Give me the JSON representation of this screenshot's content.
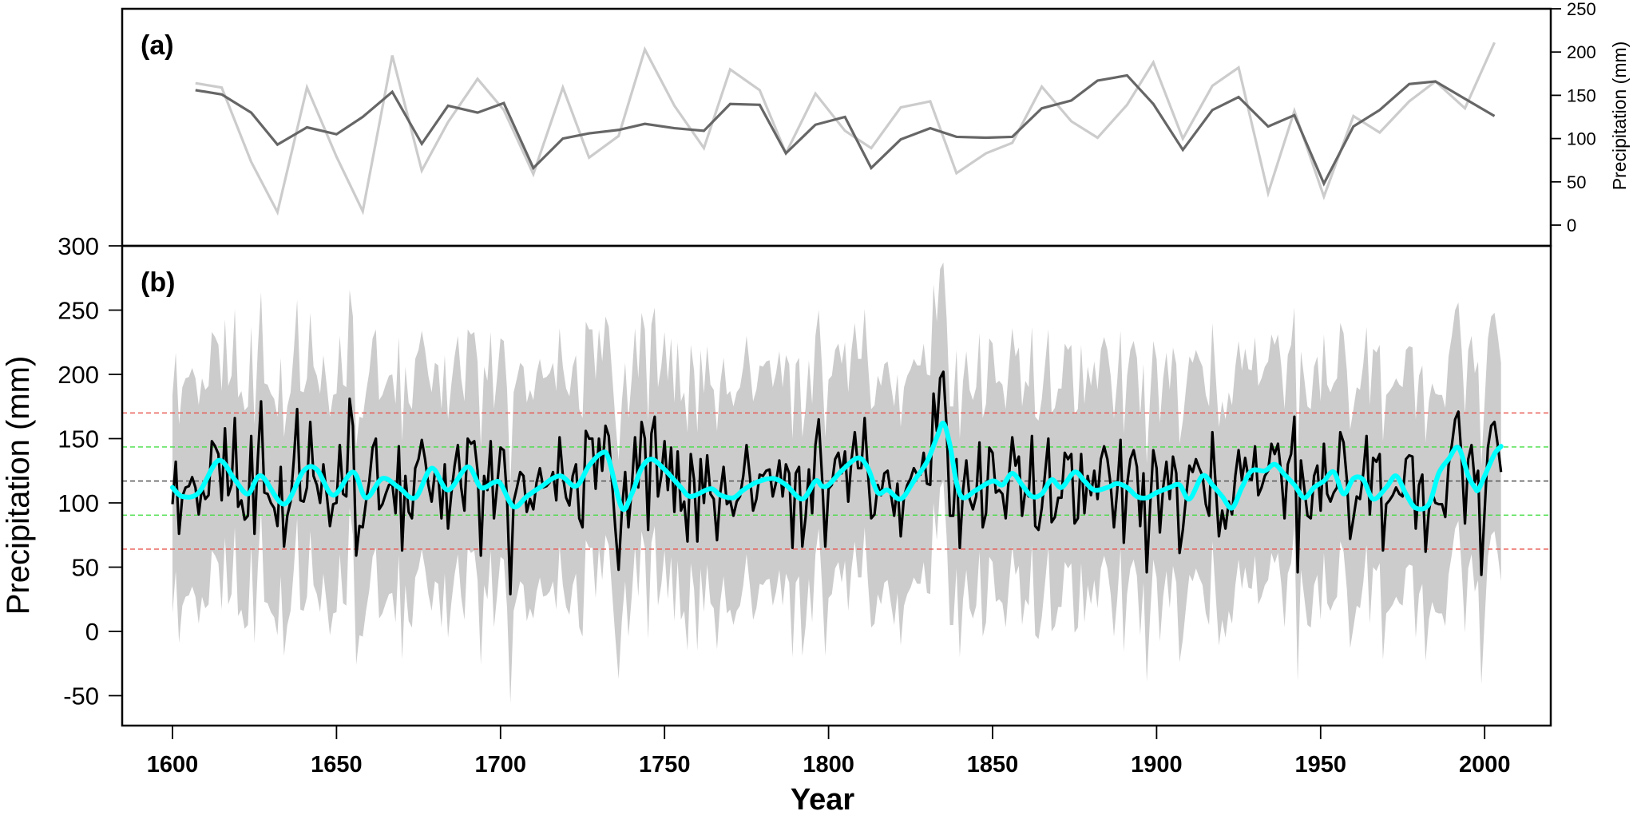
{
  "chart_data": [
    {
      "panel_label": "(a)",
      "type": "line",
      "y_axis_label": "Precipitation (mm)",
      "y_axis_side": "right",
      "ylim": [
        -24,
        250
      ],
      "y_ticks": [
        "0",
        "50",
        "100",
        "150",
        "200",
        "250"
      ],
      "xlim": [
        1585,
        2020
      ],
      "grid": false,
      "x": [
        1607,
        1615,
        1624,
        1632,
        1641,
        1650,
        1658,
        1667,
        1676,
        1684,
        1693,
        1701,
        1710,
        1719,
        1727,
        1736,
        1744,
        1753,
        1762,
        1770,
        1779,
        1787,
        1796,
        1805,
        1813,
        1822,
        1831,
        1839,
        1848,
        1856,
        1865,
        1874,
        1882,
        1891,
        1899,
        1908,
        1917,
        1925,
        1934,
        1942,
        1951,
        1960,
        1968,
        1977,
        1985,
        1994,
        2003
      ],
      "series": [
        {
          "color": "#666666",
          "values": [
            156,
            151,
            130,
            93,
            113,
            105,
            125,
            154,
            94,
            138,
            130,
            141,
            66,
            100,
            106,
            110,
            117,
            112,
            109,
            140,
            139,
            83,
            116,
            125,
            66,
            99,
            112,
            102,
            101,
            102,
            135,
            144,
            167,
            173,
            140,
            87,
            133,
            148,
            114,
            127,
            48,
            114,
            133,
            163,
            166,
            146,
            126
          ]
        },
        {
          "color": "#cccccc",
          "values": [
            164,
            159,
            73,
            15,
            159,
            79,
            16,
            196,
            63,
            119,
            169,
            133,
            59,
            159,
            78,
            103,
            203,
            138,
            89,
            180,
            156,
            83,
            152,
            109,
            89,
            136,
            143,
            60,
            83,
            95,
            160,
            120,
            101,
            139,
            188,
            100,
            161,
            182,
            37,
            132,
            33,
            126,
            107,
            143,
            166,
            135,
            211
          ]
        }
      ]
    },
    {
      "panel_label": "(b)",
      "type": "line",
      "y_axis_label": "Precipitation (mm)",
      "y_axis_side": "left",
      "x_axis_label": "Year",
      "xlim": [
        1585,
        2020
      ],
      "x_ticks": [
        "1600",
        "1650",
        "1700",
        "1750",
        "1800",
        "1850",
        "1900",
        "1950",
        "2000"
      ],
      "ylim": [
        -73,
        300
      ],
      "y_ticks": [
        "-50",
        "0",
        "50",
        "100",
        "150",
        "200",
        "250",
        "300"
      ],
      "grid": false,
      "x_range": [
        1600,
        2005
      ],
      "series": [
        {
          "color": "#000000",
          "style": "annual",
          "values": [
            99,
            132,
            76,
            105,
            112,
            113,
            120,
            112,
            91,
            112,
            103,
            106,
            148,
            144,
            138,
            102,
            158,
            106,
            114,
            166,
            97,
            102,
            87,
            90,
            152,
            76,
            134,
            179,
            108,
            107,
            100,
            96,
            82,
            128,
            66,
            90,
            101,
            134,
            173,
            102,
            101,
            112,
            163,
            121,
            114,
            100,
            130,
            107,
            82,
            99,
            100,
            145,
            107,
            105,
            181,
            160,
            59,
            82,
            81,
            101,
            117,
            143,
            150,
            95,
            99,
            107,
            114,
            115,
            92,
            144,
            63,
            121,
            93,
            88,
            127,
            134,
            149,
            134,
            114,
            101,
            124,
            122,
            88,
            130,
            80,
            107,
            129,
            145,
            112,
            94,
            150,
            146,
            148,
            125,
            59,
            121,
            110,
            148,
            88,
            114,
            143,
            141,
            103,
            29,
            101,
            112,
            124,
            121,
            93,
            103,
            95,
            116,
            127,
            112,
            113,
            116,
            124,
            102,
            151,
            121,
            104,
            98,
            121,
            130,
            88,
            81,
            156,
            150,
            150,
            111,
            150,
            125,
            160,
            152,
            116,
            80,
            48,
            94,
            124,
            81,
            112,
            151,
            112,
            163,
            150,
            79,
            154,
            167,
            105,
            121,
            148,
            110,
            143,
            93,
            140,
            94,
            101,
            70,
            138,
            118,
            70,
            134,
            100,
            137,
            107,
            103,
            71,
            108,
            128,
            99,
            102,
            90,
            101,
            105,
            121,
            145,
            121,
            94,
            103,
            122,
            121,
            125,
            126,
            105,
            116,
            133,
            105,
            130,
            123,
            65,
            123,
            128,
            66,
            89,
            126,
            92,
            145,
            165,
            121,
            66,
            111,
            114,
            134,
            139,
            123,
            140,
            101,
            134,
            155,
            127,
            127,
            166,
            124,
            88,
            91,
            114,
            106,
            123,
            125,
            107,
            90,
            115,
            74,
            105,
            114,
            119,
            127,
            122,
            122,
            139,
            115,
            114,
            185,
            156,
            197,
            202,
            158,
            90,
            90,
            134,
            65,
            110,
            133,
            103,
            95,
            105,
            147,
            81,
            92,
            143,
            139,
            108,
            110,
            107,
            88,
            121,
            151,
            129,
            136,
            90,
            110,
            105,
            152,
            82,
            79,
            96,
            123,
            150,
            85,
            89,
            104,
            104,
            139,
            134,
            138,
            84,
            88,
            138,
            92,
            121,
            106,
            125,
            103,
            134,
            144,
            134,
            114,
            81,
            110,
            149,
            69,
            114,
            134,
            141,
            128,
            82,
            123,
            46,
            96,
            141,
            127,
            77,
            112,
            132,
            103,
            136,
            123,
            61,
            79,
            105,
            129,
            124,
            134,
            127,
            121,
            99,
            90,
            155,
            114,
            74,
            94,
            80,
            101,
            91,
            121,
            141,
            118,
            135,
            119,
            118,
            144,
            106,
            112,
            121,
            125,
            146,
            138,
            146,
            122,
            88,
            130,
            138,
            167,
            46,
            133,
            112,
            90,
            88,
            121,
            129,
            94,
            146,
            107,
            101,
            108,
            112,
            155,
            147,
            118,
            72,
            88,
            105,
            103,
            123,
            152,
            91,
            135,
            132,
            138,
            63,
            99,
            102,
            106,
            112,
            107,
            105,
            134,
            137,
            136,
            80,
            114,
            122,
            62,
            94,
            108,
            100,
            99,
            99,
            89,
            129,
            145,
            165,
            171,
            134,
            84,
            134,
            145,
            116,
            125,
            44,
            94,
            143,
            160,
            163,
            145,
            124
          ]
        },
        {
          "color": "#00ffff",
          "style": "smoothed",
          "x": [
            1600,
            1603,
            1608,
            1614,
            1619,
            1623,
            1627,
            1634,
            1640,
            1644,
            1649,
            1655,
            1659,
            1664,
            1669,
            1674,
            1679,
            1684,
            1690,
            1694,
            1698,
            1700,
            1704,
            1708,
            1712,
            1718,
            1723,
            1727,
            1731,
            1733,
            1737,
            1740,
            1743,
            1746,
            1750,
            1755,
            1758,
            1764,
            1767,
            1771,
            1774,
            1778,
            1783,
            1787,
            1792,
            1796,
            1798,
            1800,
            1804,
            1809,
            1812,
            1815,
            1818,
            1822,
            1826,
            1830,
            1833,
            1835,
            1837,
            1839,
            1841,
            1845,
            1850,
            1853,
            1856,
            1859,
            1862,
            1865,
            1868,
            1871,
            1875,
            1878,
            1881,
            1885,
            1888,
            1891,
            1894,
            1897,
            1900,
            1904,
            1907,
            1910,
            1914,
            1917,
            1920,
            1923,
            1926,
            1929,
            1933,
            1936,
            1939,
            1942,
            1945,
            1948,
            1951,
            1954,
            1957,
            1960,
            1963,
            1966,
            1970,
            1973,
            1976,
            1979,
            1983,
            1986,
            1989,
            1992,
            1995,
            1997,
            1998,
            2000,
            2003,
            2005
          ],
          "values": [
            112,
            105,
            108,
            133,
            118,
            107,
            121,
            99,
            125,
            126,
            106,
            124,
            104,
            119,
            112,
            104,
            127,
            110,
            128,
            112,
            116,
            115,
            97,
            105,
            112,
            121,
            113,
            129,
            139,
            134,
            96,
            107,
            127,
            134,
            126,
            112,
            105,
            111,
            106,
            104,
            110,
            116,
            119,
            114,
            103,
            117,
            113,
            114,
            125,
            135,
            127,
            108,
            110,
            103,
            117,
            132,
            151,
            162,
            145,
            116,
            104,
            110,
            117,
            114,
            123,
            114,
            105,
            107,
            118,
            112,
            124,
            117,
            110,
            112,
            115,
            112,
            105,
            104,
            108,
            112,
            114,
            103,
            121,
            114,
            105,
            96,
            112,
            125,
            125,
            130,
            122,
            114,
            104,
            112,
            117,
            124,
            107,
            119,
            118,
            103,
            112,
            121,
            107,
            96,
            99,
            123,
            134,
            143,
            121,
            112,
            110,
            121,
            138,
            144
          ]
        }
      ],
      "band": {
        "color": "#cccccc",
        "halfwidth": 85
      },
      "reference_lines": [
        {
          "value": 170,
          "color": "#e8554e"
        },
        {
          "value": 143.5,
          "color": "#44dd44"
        },
        {
          "value": 117,
          "color": "#555555"
        },
        {
          "value": 90.5,
          "color": "#44dd44"
        },
        {
          "value": 64,
          "color": "#e8554e"
        }
      ]
    }
  ]
}
